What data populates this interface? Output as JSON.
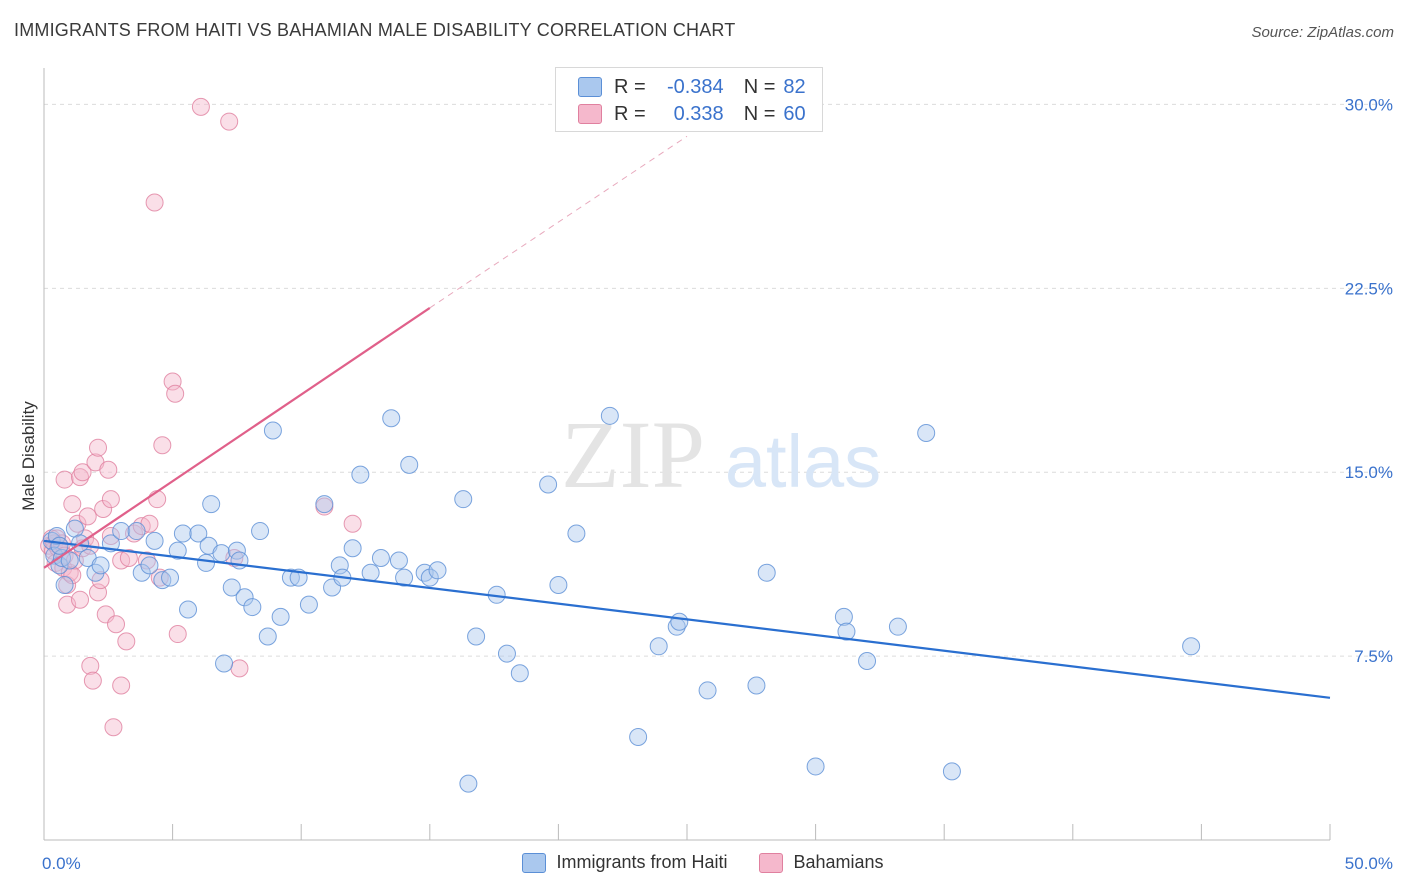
{
  "header": {
    "title": "IMMIGRANTS FROM HAITI VS BAHAMIAN MALE DISABILITY CORRELATION CHART",
    "source": "Source: ZipAtlas.com"
  },
  "watermark": {
    "zip": "ZIP",
    "atlas": "atlas"
  },
  "colors": {
    "blue_fill": "#aac8ee",
    "blue_stroke": "#5b8fd6",
    "blue_line": "#2a6fd0",
    "pink_fill": "#f5b8cc",
    "pink_stroke": "#e0809f",
    "pink_line": "#e0608a",
    "axis_text": "#3a72cc"
  },
  "legend": {
    "series": [
      {
        "swatch": "blue",
        "r_label": "R =",
        "r_value": "-0.384",
        "n_label": "N =",
        "n_value": "82"
      },
      {
        "swatch": "pink",
        "r_label": "R =",
        "r_value": "0.338",
        "n_label": "N =",
        "n_value": "60"
      }
    ],
    "bottom": [
      "Immigrants from Haiti",
      "Bahamians"
    ]
  },
  "chart_data": {
    "type": "scatter",
    "title": "IMMIGRANTS FROM HAITI VS BAHAMIAN MALE DISABILITY CORRELATION CHART",
    "xlabel": "",
    "ylabel": "Male Disability",
    "xlim": [
      0,
      50
    ],
    "ylim": [
      0,
      31.2
    ],
    "x_tick_labels": [
      "0.0%",
      "50.0%"
    ],
    "y_ticks": [
      7.5,
      15.0,
      22.5,
      30.0
    ],
    "y_tick_labels": [
      "7.5%",
      "15.0%",
      "22.5%",
      "30.0%"
    ],
    "grid": true,
    "legend_position": "top-center",
    "series": [
      {
        "name": "Immigrants from Haiti",
        "color": "blue",
        "r": -0.384,
        "n": 82,
        "trend": {
          "x": [
            0,
            50
          ],
          "y": [
            12.2,
            5.8
          ],
          "dashed_extension": false
        },
        "points": [
          [
            0.3,
            12.2
          ],
          [
            0.4,
            11.6
          ],
          [
            0.5,
            12.4
          ],
          [
            0.6,
            11.2
          ],
          [
            0.7,
            11.5
          ],
          [
            0.8,
            10.4
          ],
          [
            1.0,
            11.4
          ],
          [
            1.2,
            12.7
          ],
          [
            1.4,
            12.1
          ],
          [
            1.7,
            11.5
          ],
          [
            2.0,
            10.9
          ],
          [
            2.2,
            11.2
          ],
          [
            2.6,
            12.1
          ],
          [
            3.0,
            12.6
          ],
          [
            3.6,
            12.6
          ],
          [
            3.8,
            10.9
          ],
          [
            4.1,
            11.2
          ],
          [
            4.3,
            12.2
          ],
          [
            4.6,
            10.6
          ],
          [
            4.9,
            10.7
          ],
          [
            5.2,
            11.8
          ],
          [
            5.4,
            12.5
          ],
          [
            5.6,
            9.4
          ],
          [
            6.0,
            12.5
          ],
          [
            6.3,
            11.3
          ],
          [
            6.4,
            12.0
          ],
          [
            6.5,
            13.7
          ],
          [
            6.9,
            11.7
          ],
          [
            7.0,
            7.2
          ],
          [
            7.3,
            10.3
          ],
          [
            7.5,
            11.8
          ],
          [
            7.6,
            11.4
          ],
          [
            7.8,
            9.9
          ],
          [
            8.1,
            9.5
          ],
          [
            8.4,
            12.6
          ],
          [
            8.7,
            8.3
          ],
          [
            8.9,
            16.7
          ],
          [
            9.2,
            9.1
          ],
          [
            9.6,
            10.7
          ],
          [
            9.9,
            10.7
          ],
          [
            10.3,
            9.6
          ],
          [
            10.9,
            13.7
          ],
          [
            11.2,
            10.3
          ],
          [
            11.5,
            11.2
          ],
          [
            11.6,
            10.7
          ],
          [
            12.0,
            11.9
          ],
          [
            12.3,
            14.9
          ],
          [
            12.7,
            10.9
          ],
          [
            13.1,
            11.5
          ],
          [
            13.5,
            17.2
          ],
          [
            13.8,
            11.4
          ],
          [
            14.0,
            10.7
          ],
          [
            14.2,
            15.3
          ],
          [
            14.8,
            10.9
          ],
          [
            15.0,
            10.7
          ],
          [
            15.3,
            11.0
          ],
          [
            16.3,
            13.9
          ],
          [
            16.5,
            2.3
          ],
          [
            16.8,
            8.3
          ],
          [
            17.6,
            10.0
          ],
          [
            18.0,
            7.6
          ],
          [
            18.5,
            6.8
          ],
          [
            19.6,
            14.5
          ],
          [
            20.0,
            10.4
          ],
          [
            20.7,
            12.5
          ],
          [
            22.0,
            17.3
          ],
          [
            23.1,
            4.2
          ],
          [
            23.9,
            7.9
          ],
          [
            24.6,
            8.7
          ],
          [
            24.7,
            8.9
          ],
          [
            25.8,
            6.1
          ],
          [
            27.7,
            6.3
          ],
          [
            28.1,
            10.9
          ],
          [
            30.0,
            3.0
          ],
          [
            31.1,
            9.1
          ],
          [
            31.2,
            8.5
          ],
          [
            32.0,
            7.3
          ],
          [
            33.2,
            8.7
          ],
          [
            34.3,
            16.6
          ],
          [
            35.3,
            2.8
          ],
          [
            44.6,
            7.9
          ],
          [
            0.6,
            12.0
          ]
        ]
      },
      {
        "name": "Bahamians",
        "color": "pink",
        "r": 0.338,
        "n": 60,
        "trend": {
          "x": [
            0,
            15.0
          ],
          "y": [
            11.1,
            21.7
          ],
          "dashed_to": [
            25.0,
            28.7
          ]
        },
        "points": [
          [
            0.2,
            12.0
          ],
          [
            0.3,
            12.3
          ],
          [
            0.35,
            11.8
          ],
          [
            0.4,
            12.1
          ],
          [
            0.45,
            11.3
          ],
          [
            0.5,
            12.3
          ],
          [
            0.55,
            11.9
          ],
          [
            0.6,
            12.0
          ],
          [
            0.7,
            12.1
          ],
          [
            0.75,
            11.1
          ],
          [
            0.8,
            14.7
          ],
          [
            0.8,
            11.6
          ],
          [
            0.9,
            10.4
          ],
          [
            0.9,
            9.6
          ],
          [
            1.0,
            10.9
          ],
          [
            1.1,
            10.8
          ],
          [
            1.1,
            13.7
          ],
          [
            1.2,
            11.4
          ],
          [
            1.3,
            12.9
          ],
          [
            1.4,
            14.8
          ],
          [
            1.4,
            9.8
          ],
          [
            1.5,
            11.9
          ],
          [
            1.5,
            15.0
          ],
          [
            1.6,
            12.3
          ],
          [
            1.7,
            13.2
          ],
          [
            1.8,
            12.0
          ],
          [
            1.8,
            7.1
          ],
          [
            1.9,
            6.5
          ],
          [
            2.0,
            15.4
          ],
          [
            2.1,
            10.1
          ],
          [
            2.1,
            16.0
          ],
          [
            2.2,
            10.6
          ],
          [
            2.3,
            13.5
          ],
          [
            2.4,
            9.2
          ],
          [
            2.5,
            15.1
          ],
          [
            2.6,
            12.4
          ],
          [
            2.6,
            13.9
          ],
          [
            2.7,
            4.6
          ],
          [
            2.8,
            8.8
          ],
          [
            3.0,
            11.4
          ],
          [
            3.0,
            6.3
          ],
          [
            3.2,
            8.1
          ],
          [
            3.3,
            11.5
          ],
          [
            3.5,
            12.5
          ],
          [
            3.8,
            12.8
          ],
          [
            4.0,
            11.4
          ],
          [
            4.1,
            12.9
          ],
          [
            4.3,
            26.0
          ],
          [
            4.4,
            13.9
          ],
          [
            4.5,
            10.7
          ],
          [
            4.6,
            16.1
          ],
          [
            5.0,
            18.7
          ],
          [
            5.1,
            18.2
          ],
          [
            5.2,
            8.4
          ],
          [
            6.1,
            29.9
          ],
          [
            7.2,
            29.3
          ],
          [
            7.4,
            11.5
          ],
          [
            7.6,
            7.0
          ],
          [
            10.9,
            13.6
          ],
          [
            12.0,
            12.9
          ]
        ]
      }
    ]
  }
}
